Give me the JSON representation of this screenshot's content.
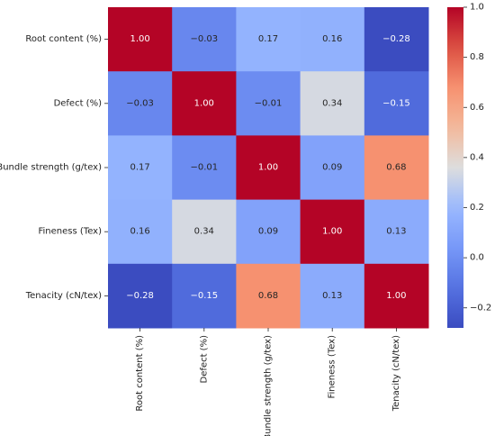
{
  "chart_data": {
    "type": "heatmap",
    "title": "",
    "row_labels": [
      "Root content (%)",
      "Defect (%)",
      "Bundle strength (g/tex)",
      "Fineness (Tex)",
      "Tenacity (cN/tex)"
    ],
    "col_labels": [
      "Root content (%)",
      "Defect (%)",
      "Bundle strength (g/tex)",
      "Fineness (Tex)",
      "Tenacity (cN/tex)"
    ],
    "values": [
      [
        1.0,
        -0.03,
        0.17,
        0.16,
        -0.28
      ],
      [
        -0.03,
        1.0,
        -0.01,
        0.34,
        -0.15
      ],
      [
        0.17,
        -0.01,
        1.0,
        0.09,
        0.68
      ],
      [
        0.16,
        0.34,
        0.09,
        1.0,
        0.13
      ],
      [
        -0.28,
        -0.15,
        0.68,
        0.13,
        1.0
      ]
    ],
    "annotations": [
      [
        "1.00",
        "−0.03",
        "0.17",
        "0.16",
        "−0.28"
      ],
      [
        "−0.03",
        "1.00",
        "−0.01",
        "0.34",
        "−0.15"
      ],
      [
        "0.17",
        "−0.01",
        "1.00",
        "0.09",
        "0.68"
      ],
      [
        "0.16",
        "0.34",
        "0.09",
        "1.00",
        "0.13"
      ],
      [
        "−0.28",
        "−0.15",
        "0.68",
        "0.13",
        "1.00"
      ]
    ],
    "colormap": "coolwarm",
    "vmin": -0.28,
    "vmax": 1.0,
    "colorbar": {
      "ticks": [
        -0.2,
        0.0,
        0.2,
        0.4,
        0.6,
        0.8,
        1.0
      ],
      "tick_labels": [
        "−0.2",
        "0.0",
        "0.2",
        "0.4",
        "0.6",
        "0.8",
        "1.0"
      ],
      "placement": "right"
    },
    "colors": {
      "low": "#3b4cc0",
      "mid": "#dddddd",
      "high": "#b40426"
    }
  }
}
